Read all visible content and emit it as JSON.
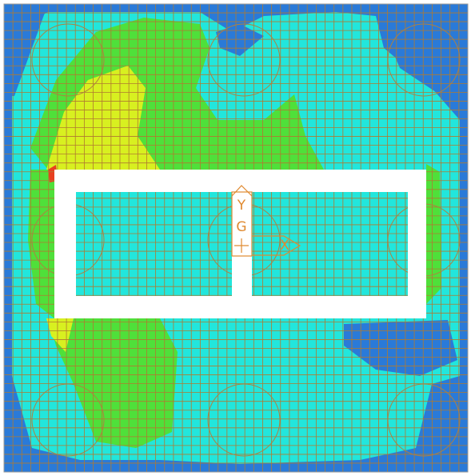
{
  "axis_glyph": {
    "y_label": "Y",
    "origin_label": "G",
    "x_label": "X"
  }
}
